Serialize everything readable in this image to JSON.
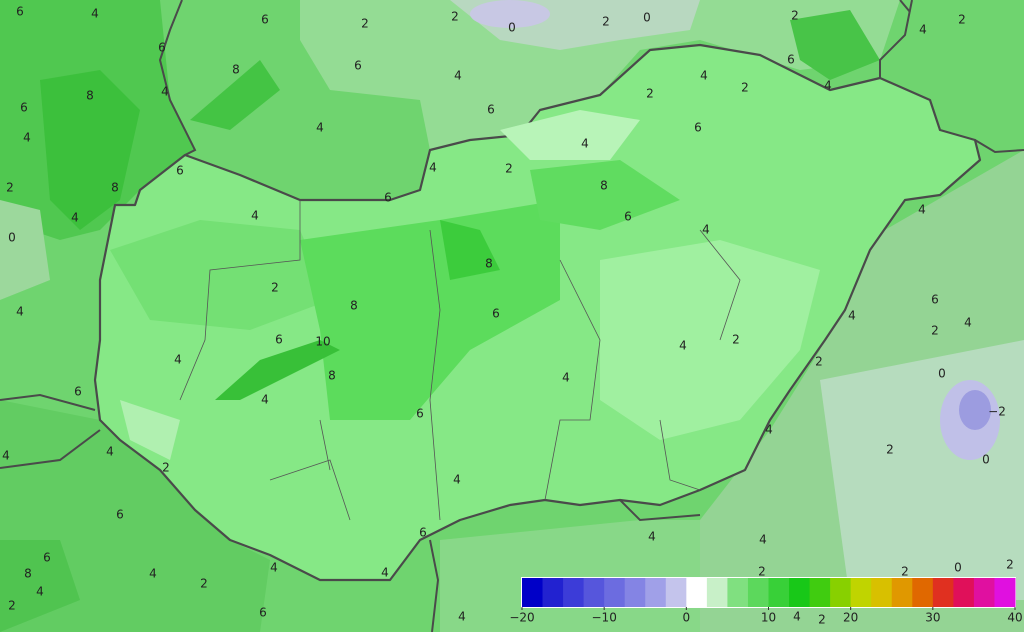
{
  "map": {
    "contour_labels": [
      "6",
      "4",
      "6",
      "2",
      "2",
      "0",
      "2",
      "0",
      "2",
      "2",
      "4",
      "6",
      "8",
      "6",
      "4",
      "6",
      "6",
      "8",
      "4",
      "4",
      "4",
      "4",
      "2",
      "6",
      "4",
      "2",
      "6",
      "4",
      "2",
      "4",
      "8",
      "2",
      "8",
      "6",
      "4",
      "6",
      "4",
      "6",
      "4",
      "4",
      "0",
      "8",
      "2",
      "8",
      "6",
      "6",
      "4",
      "4",
      "2",
      "4",
      "6",
      "10",
      "2",
      "4",
      "4",
      "8",
      "4",
      "2",
      "0",
      "6",
      "4",
      "6",
      "−2",
      "4",
      "4",
      "4",
      "2",
      "0",
      "2",
      "4",
      "6",
      "6",
      "4",
      "4",
      "6",
      "8",
      "4",
      "2",
      "4",
      "2",
      "2",
      "0",
      "2",
      "4",
      "4",
      "2",
      "4",
      "6",
      "4",
      "2"
    ],
    "colorbar": {
      "ticks": [
        {
          "value": -20,
          "label": "−20"
        },
        {
          "value": -10,
          "label": "−10"
        },
        0,
        10,
        20,
        30,
        40
      ],
      "colors": [
        "#0000c8",
        "#2222d0",
        "#3c3cd8",
        "#5656dc",
        "#6c6ce0",
        "#8484e4",
        "#a0a0e8",
        "#c4c4ec",
        "#ffffff",
        "#c8f0c8",
        "#80e080",
        "#5cd85c",
        "#38d038",
        "#18c818",
        "#40cc10",
        "#88d000",
        "#c0d400",
        "#d8c000",
        "#e09800",
        "#e06800",
        "#e03020",
        "#e0105a",
        "#e010a0",
        "#e010e0"
      ]
    }
  }
}
